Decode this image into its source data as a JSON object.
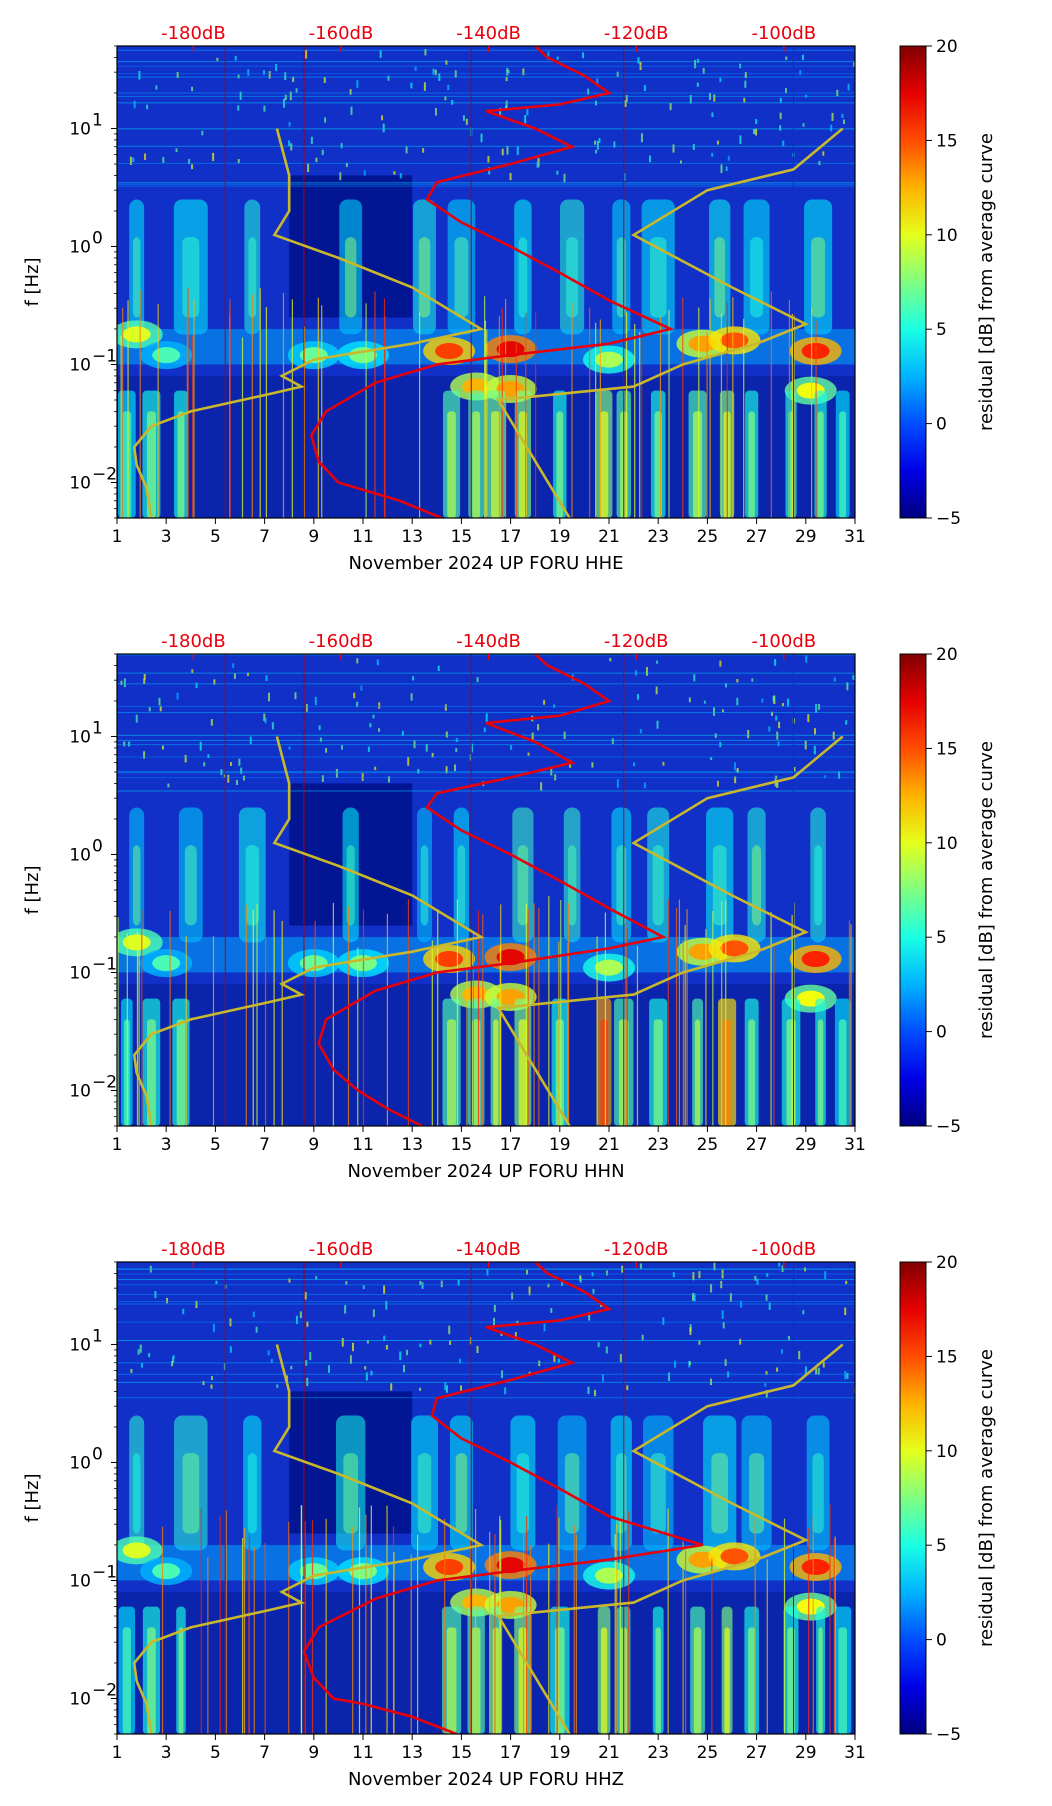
{
  "chart_data": [
    {
      "type": "heatmap",
      "xlabel": "November 2024 UP FORU  HHE",
      "ylabel": "f [Hz]",
      "x_ticks": [
        "1",
        "3",
        "5",
        "7",
        "9",
        "11",
        "13",
        "15",
        "17",
        "19",
        "21",
        "23",
        "25",
        "27",
        "29",
        "31"
      ],
      "xlim": [
        1,
        31
      ],
      "y_scale": "log",
      "ylim": [
        0.005,
        50
      ],
      "y_ticks": [
        {
          "base": "10",
          "exp": "1",
          "value": 10
        },
        {
          "base": "10",
          "exp": "0",
          "value": 1
        },
        {
          "base": "10",
          "exp": "−1",
          "value": 0.1
        },
        {
          "base": "10",
          "exp": "−2",
          "value": 0.01
        }
      ],
      "db_labels": [
        "-180dB",
        "-160dB",
        "-140dB",
        "-120dB",
        "-100dB"
      ],
      "db_line_days": [
        5.4,
        8.6,
        15.4,
        21.6,
        28.5
      ],
      "colorbar": {
        "label": "residual [dB] from average curve",
        "range": [
          -5,
          20
        ],
        "ticks": [
          "20",
          "15",
          "10",
          "5",
          "0",
          "−5"
        ]
      },
      "red_curve": {
        "name": "",
        "points": [
          [
            14.2,
            0.005
          ],
          [
            12.5,
            0.007
          ],
          [
            10,
            0.01
          ],
          [
            9.2,
            0.015
          ],
          [
            8.9,
            0.025
          ],
          [
            9.5,
            0.04
          ],
          [
            11.5,
            0.07
          ],
          [
            14,
            0.1
          ],
          [
            17,
            0.12
          ],
          [
            21,
            0.15
          ],
          [
            23.5,
            0.2
          ],
          [
            21,
            0.35
          ],
          [
            19,
            0.6
          ],
          [
            17,
            1.0
          ],
          [
            15,
            1.6
          ],
          [
            13.6,
            2.5
          ],
          [
            14,
            3.5
          ],
          [
            17,
            5
          ],
          [
            19.5,
            7
          ],
          [
            18,
            10
          ],
          [
            16,
            14
          ],
          [
            19,
            16
          ],
          [
            21,
            20
          ],
          [
            20,
            28
          ],
          [
            18.5,
            40
          ],
          [
            18,
            50
          ]
        ]
      },
      "yellow_curve": {
        "name": "",
        "points": [
          [
            2.4,
            0.005
          ],
          [
            2.2,
            0.009
          ],
          [
            1.8,
            0.014
          ],
          [
            1.7,
            0.02
          ],
          [
            2.4,
            0.03
          ],
          [
            4,
            0.04
          ],
          [
            7,
            0.055
          ],
          [
            8.5,
            0.065
          ],
          [
            7.7,
            0.08
          ],
          [
            9,
            0.11
          ],
          [
            13,
            0.15
          ],
          [
            15.8,
            0.2
          ],
          [
            13,
            0.45
          ],
          [
            10,
            0.8
          ],
          [
            7.4,
            1.25
          ],
          [
            8,
            2
          ],
          [
            8,
            4
          ],
          [
            7.5,
            10
          ],
          [
            19.4,
            0.005
          ],
          [
            16.5,
            0.05
          ],
          [
            22,
            0.065
          ],
          [
            24,
            0.1
          ],
          [
            27,
            0.15
          ],
          [
            29,
            0.22
          ],
          [
            26,
            0.45
          ],
          [
            22,
            1.25
          ],
          [
            25,
            3
          ],
          [
            28.5,
            4.5
          ],
          [
            30.5,
            10
          ]
        ]
      }
    },
    {
      "type": "heatmap",
      "xlabel": "November 2024 UP FORU  HHN",
      "ylabel": "f [Hz]",
      "x_ticks": [
        "1",
        "3",
        "5",
        "7",
        "9",
        "11",
        "13",
        "15",
        "17",
        "19",
        "21",
        "23",
        "25",
        "27",
        "29",
        "31"
      ],
      "xlim": [
        1,
        31
      ],
      "y_scale": "log",
      "ylim": [
        0.005,
        50
      ],
      "y_ticks": [
        {
          "base": "10",
          "exp": "1",
          "value": 10
        },
        {
          "base": "10",
          "exp": "0",
          "value": 1
        },
        {
          "base": "10",
          "exp": "−1",
          "value": 0.1
        },
        {
          "base": "10",
          "exp": "−2",
          "value": 0.01
        }
      ],
      "db_labels": [
        "-180dB",
        "-160dB",
        "-140dB",
        "-120dB",
        "-100dB"
      ],
      "db_line_days": [
        5.4,
        8.6,
        15.4,
        21.6,
        28.5
      ],
      "colorbar": {
        "label": "residual [dB] from average curve",
        "range": [
          -5,
          20
        ],
        "ticks": [
          "20",
          "15",
          "10",
          "5",
          "0",
          "−5"
        ]
      },
      "red_curve": {
        "name": "",
        "points": [
          [
            13.4,
            0.005
          ],
          [
            12,
            0.007
          ],
          [
            10.8,
            0.01
          ],
          [
            9.8,
            0.015
          ],
          [
            9.2,
            0.025
          ],
          [
            9.5,
            0.04
          ],
          [
            11.5,
            0.07
          ],
          [
            14,
            0.1
          ],
          [
            17,
            0.12
          ],
          [
            21,
            0.16
          ],
          [
            23.2,
            0.2
          ],
          [
            21,
            0.35
          ],
          [
            19,
            0.6
          ],
          [
            17,
            1.0
          ],
          [
            15,
            1.6
          ],
          [
            13.6,
            2.5
          ],
          [
            14,
            3.3
          ],
          [
            17,
            4.5
          ],
          [
            19.5,
            6
          ],
          [
            18,
            9
          ],
          [
            16,
            13
          ],
          [
            19,
            15
          ],
          [
            21,
            20
          ],
          [
            20,
            28
          ],
          [
            18.5,
            40
          ],
          [
            18,
            50
          ]
        ]
      },
      "yellow_curve": {
        "name": "",
        "points": [
          [
            2.4,
            0.005
          ],
          [
            2.2,
            0.009
          ],
          [
            1.8,
            0.014
          ],
          [
            1.7,
            0.02
          ],
          [
            2.4,
            0.03
          ],
          [
            4,
            0.04
          ],
          [
            7,
            0.055
          ],
          [
            8.5,
            0.065
          ],
          [
            7.7,
            0.08
          ],
          [
            9,
            0.11
          ],
          [
            13,
            0.15
          ],
          [
            15.8,
            0.2
          ],
          [
            13,
            0.45
          ],
          [
            10,
            0.8
          ],
          [
            7.4,
            1.25
          ],
          [
            8,
            2
          ],
          [
            8,
            4
          ],
          [
            7.5,
            10
          ],
          [
            19.4,
            0.005
          ],
          [
            16.5,
            0.05
          ],
          [
            22,
            0.065
          ],
          [
            24,
            0.1
          ],
          [
            27,
            0.15
          ],
          [
            29,
            0.22
          ],
          [
            26,
            0.45
          ],
          [
            22,
            1.25
          ],
          [
            25,
            3
          ],
          [
            28.5,
            4.5
          ],
          [
            30.5,
            10
          ]
        ]
      }
    },
    {
      "type": "heatmap",
      "xlabel": "November 2024 UP FORU  HHZ",
      "ylabel": "f [Hz]",
      "x_ticks": [
        "1",
        "3",
        "5",
        "7",
        "9",
        "11",
        "13",
        "15",
        "17",
        "19",
        "21",
        "23",
        "25",
        "27",
        "29",
        "31"
      ],
      "xlim": [
        1,
        31
      ],
      "y_scale": "log",
      "ylim": [
        0.005,
        50
      ],
      "y_ticks": [
        {
          "base": "10",
          "exp": "1",
          "value": 10
        },
        {
          "base": "10",
          "exp": "0",
          "value": 1
        },
        {
          "base": "10",
          "exp": "−1",
          "value": 0.1
        },
        {
          "base": "10",
          "exp": "−2",
          "value": 0.01
        }
      ],
      "db_labels": [
        "-180dB",
        "-160dB",
        "-140dB",
        "-120dB",
        "-100dB"
      ],
      "db_line_days": [
        5.4,
        8.6,
        15.4,
        21.6,
        28.5
      ],
      "colorbar": {
        "label": "residual [dB] from average curve",
        "range": [
          -5,
          20
        ],
        "ticks": [
          "20",
          "15",
          "10",
          "5",
          "0",
          "−5"
        ]
      },
      "red_curve": {
        "name": "",
        "points": [
          [
            14.8,
            0.005
          ],
          [
            13,
            0.007
          ],
          [
            11,
            0.009
          ],
          [
            9.8,
            0.01
          ],
          [
            9,
            0.015
          ],
          [
            8.6,
            0.025
          ],
          [
            9.2,
            0.04
          ],
          [
            11.5,
            0.07
          ],
          [
            14,
            0.1
          ],
          [
            17,
            0.12
          ],
          [
            21,
            0.15
          ],
          [
            24.8,
            0.2
          ],
          [
            21,
            0.35
          ],
          [
            19,
            0.6
          ],
          [
            17,
            1.0
          ],
          [
            15,
            1.6
          ],
          [
            13.8,
            2.5
          ],
          [
            14,
            3.5
          ],
          [
            17,
            5
          ],
          [
            19.5,
            7
          ],
          [
            18,
            10
          ],
          [
            16,
            14
          ],
          [
            19,
            16
          ],
          [
            21,
            20
          ],
          [
            20,
            28
          ],
          [
            18.5,
            40
          ],
          [
            18,
            50
          ]
        ]
      },
      "yellow_curve": {
        "name": "",
        "points": [
          [
            2.4,
            0.005
          ],
          [
            2.2,
            0.009
          ],
          [
            1.8,
            0.014
          ],
          [
            1.7,
            0.02
          ],
          [
            2.4,
            0.03
          ],
          [
            4,
            0.04
          ],
          [
            7,
            0.055
          ],
          [
            8.5,
            0.065
          ],
          [
            7.7,
            0.08
          ],
          [
            9,
            0.11
          ],
          [
            13,
            0.15
          ],
          [
            15.8,
            0.2
          ],
          [
            13,
            0.45
          ],
          [
            10,
            0.8
          ],
          [
            7.4,
            1.25
          ],
          [
            8,
            2
          ],
          [
            8,
            4
          ],
          [
            7.5,
            10
          ],
          [
            19.4,
            0.005
          ],
          [
            16.5,
            0.05
          ],
          [
            22,
            0.065
          ],
          [
            24,
            0.1
          ],
          [
            27,
            0.15
          ],
          [
            29,
            0.22
          ],
          [
            26,
            0.45
          ],
          [
            22,
            1.25
          ],
          [
            25,
            3
          ],
          [
            28.5,
            4.5
          ],
          [
            30.5,
            10
          ]
        ]
      }
    }
  ],
  "colors": {
    "red_curve": "#e8000b",
    "yellow_curve": "#c9b82c",
    "db_line": "#b00000",
    "background": "#1030c8"
  }
}
